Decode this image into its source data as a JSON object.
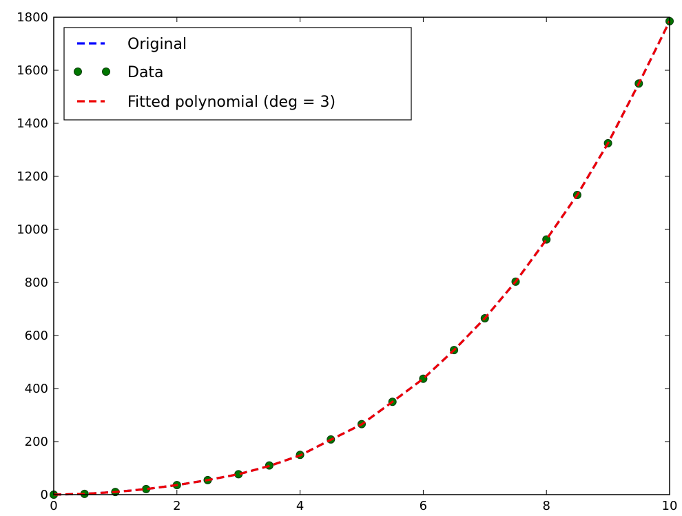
{
  "chart_data": {
    "type": "line",
    "title": "",
    "xlabel": "",
    "ylabel": "",
    "xlim": [
      0,
      10
    ],
    "ylim": [
      0,
      1800
    ],
    "xticks": [
      0,
      2,
      4,
      6,
      8,
      10
    ],
    "yticks": [
      0,
      200,
      400,
      600,
      800,
      1000,
      1200,
      1400,
      1600,
      1800
    ],
    "grid": false,
    "legend_position": "top-left",
    "series": [
      {
        "name": "Original",
        "style": "dashed-line",
        "color": "#0000ff",
        "x": [
          0,
          0.5,
          1,
          1.5,
          2,
          2.5,
          3,
          3.5,
          4,
          4.5,
          5,
          5.5,
          6,
          6.5,
          7,
          7.5,
          8,
          8.5,
          9,
          9.5,
          10
        ],
        "y": [
          0,
          3,
          10,
          21,
          36,
          55,
          77,
          108,
          148,
          207,
          265,
          350,
          437,
          545,
          665,
          803,
          962,
          1130,
          1325,
          1550,
          1785
        ]
      },
      {
        "name": "Data",
        "style": "markers",
        "color": "#007700",
        "x": [
          0,
          0.5,
          1,
          1.5,
          2,
          2.5,
          3,
          3.5,
          4,
          4.5,
          5,
          5.5,
          6,
          6.5,
          7,
          7.5,
          8,
          8.5,
          9,
          9.5,
          10
        ],
        "y": [
          0,
          3,
          10,
          21,
          36,
          55,
          77,
          110,
          150,
          208,
          266,
          350,
          437,
          545,
          665,
          803,
          962,
          1130,
          1325,
          1550,
          1785
        ]
      },
      {
        "name": "Fitted polynomial (deg = 3)",
        "style": "dashed-line",
        "color": "#ee0000",
        "x": [
          0,
          0.5,
          1,
          1.5,
          2,
          2.5,
          3,
          3.5,
          4,
          4.5,
          5,
          5.5,
          6,
          6.5,
          7,
          7.5,
          8,
          8.5,
          9,
          9.5,
          10
        ],
        "y": [
          0,
          3,
          10,
          21,
          36,
          55,
          77,
          108,
          148,
          207,
          265,
          350,
          437,
          545,
          665,
          803,
          962,
          1130,
          1325,
          1550,
          1785
        ]
      }
    ]
  }
}
